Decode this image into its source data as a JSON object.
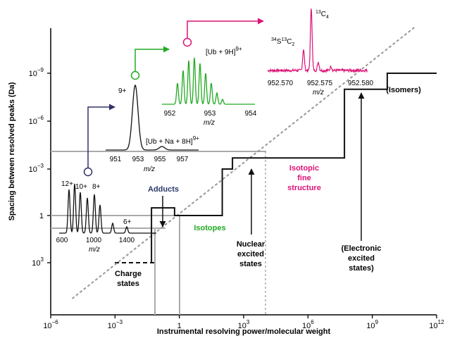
{
  "chart_data": {
    "type": "line",
    "xlabel": "Instrumental resolving power/molecular weight",
    "ylabel": "Spacing between resolved peaks (Da)",
    "x_scale": "log",
    "x_ticks": [
      {
        "label": "10",
        "exp": "−6",
        "value": 1e-06
      },
      {
        "label": "10",
        "exp": "−3",
        "value": 0.001
      },
      {
        "label": "1",
        "exp": "",
        "value": 1
      },
      {
        "label": "10",
        "exp": "3",
        "value": 1000.0
      },
      {
        "label": "10",
        "exp": "6",
        "value": 1000000.0
      },
      {
        "label": "10",
        "exp": "9",
        "value": 1000000000.0
      },
      {
        "label": "10",
        "exp": "12",
        "value": 1000000000000.0
      }
    ],
    "y_ticks": [
      {
        "label": "10",
        "exp": "−9",
        "level": 4
      },
      {
        "label": "10",
        "exp": "−6",
        "level": 3
      },
      {
        "label": "10",
        "exp": "−3",
        "level": 2
      },
      {
        "label": "1",
        "exp": "",
        "level": 1
      },
      {
        "label": "10",
        "exp": "3",
        "level": 0
      }
    ],
    "series": [
      {
        "color": "#111111",
        "style": "step",
        "points": [
          [
            0.05,
            1000.0
          ],
          [
            0.05,
            0.32
          ],
          [
            0.6,
            0.32
          ],
          [
            0.6,
            1
          ],
          [
            100,
            1
          ],
          [
            100,
            0.001
          ],
          [
            300,
            0.001
          ],
          [
            300,
            0.0002
          ],
          [
            50000000.0,
            0.0002
          ],
          [
            50000000.0,
            1e-08
          ],
          [
            5000000000.0,
            1e-08
          ],
          [
            5000000000.0,
            3.2e-10
          ],
          [
            1000000000000.0,
            3.2e-10
          ]
        ]
      },
      {
        "color": "#999999",
        "style": "diagonal",
        "points": [
          [
            1e-05,
            10000.0
          ],
          [
            100000000000.0,
            1e-10
          ]
        ]
      }
    ],
    "annotations": [
      {
        "text": "Charge",
        "color": "#000000"
      },
      {
        "text": "states",
        "color": "#000000"
      },
      {
        "text": "Adducts",
        "color": "#2a3a6a"
      },
      {
        "text": "Isotopes",
        "color": "#22aa22"
      },
      {
        "text": "Nuclear",
        "color": "#000000"
      },
      {
        "text": "excited",
        "color": "#000000"
      },
      {
        "text": "states",
        "color": "#000000"
      },
      {
        "text": "Isotopic",
        "color": "#dd1177"
      },
      {
        "text": "fine",
        "color": "#dd1177"
      },
      {
        "text": "structure",
        "color": "#dd1177"
      },
      {
        "text": "(Electronic",
        "color": "#000000"
      },
      {
        "text": "excited",
        "color": "#000000"
      },
      {
        "text": "states)",
        "color": "#000000"
      },
      {
        "text": "(Isomers)",
        "color": "#000000"
      }
    ],
    "insets": {
      "charge": {
        "peak_labels": [
          "12+",
          "10+",
          "8+",
          "6+"
        ],
        "ticks": [
          "600",
          "1000",
          "1400"
        ],
        "xlabel": "m/z",
        "color": "#111111"
      },
      "adduct": {
        "peak_labels": [
          "9+"
        ],
        "annotation": "[Ub + Na + 8H]",
        "annotation_sup": "9+",
        "ticks": [
          "951",
          "953",
          "955",
          "957"
        ],
        "xlabel": "m/z",
        "color": "#111111"
      },
      "isotope": {
        "annotation": "[Ub + 9H]",
        "annotation_sup": "9+",
        "ticks": [
          "952",
          "953",
          "954"
        ],
        "xlabel": "m/z",
        "color": "#22aa22"
      },
      "fine": {
        "label_a_sup": "13",
        "label_a": "C",
        "label_a_sub": "4",
        "label_b_sup1": "34",
        "label_b_mid": "S",
        "label_b_sup2": "13",
        "label_b": "C",
        "label_b_sub": "2",
        "ticks": [
          "952.570",
          "952.575",
          "952.580"
        ],
        "xlabel": "m/z",
        "color": "#dd1177"
      }
    },
    "colors": {
      "charge_arrow": "#333366",
      "isotope_arrow": "#22aa22",
      "fine_arrow": "#dd1177",
      "guide_lines": "#aaaaaa"
    }
  }
}
